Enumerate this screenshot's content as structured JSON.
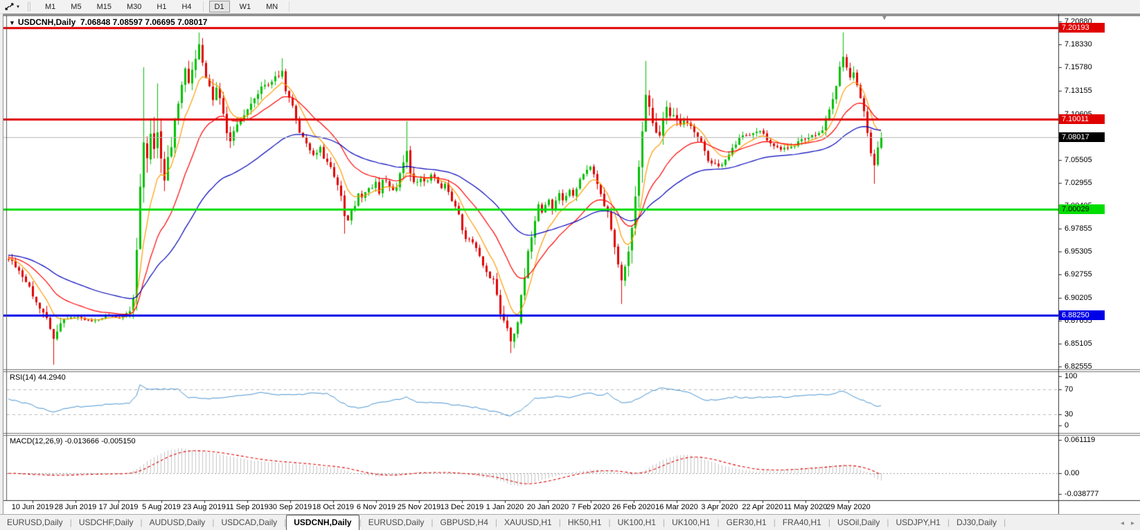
{
  "toolbar": {
    "timeframes": [
      "M1",
      "M5",
      "M15",
      "M30",
      "H1",
      "H4",
      "D1",
      "W1",
      "MN"
    ],
    "active": "D1"
  },
  "chart": {
    "title_symbol": "USDCNH,Daily",
    "title_ohlc": "7.06848 7.08597 7.06695 7.08017",
    "collapse_icon": "▼",
    "shift_marker_icon": "▼"
  },
  "indicators": {
    "rsi": {
      "label": "RSI(14) 44.2940",
      "scale_ticks": [
        [
          "100",
          543
        ],
        [
          "70",
          562
        ],
        [
          "30",
          598
        ],
        [
          "0",
          614
        ]
      ],
      "levels": [
        70,
        30
      ],
      "color": "#4a96d2"
    },
    "macd": {
      "label": "MACD(12,26,9) -0.013666 -0.005150",
      "scale_ticks": [
        [
          "0.061119",
          635
        ],
        [
          "0.00",
          683
        ],
        [
          "-0.038777",
          713
        ]
      ],
      "bar_color": "#c4c4c4",
      "signal_color": "#e00000"
    }
  },
  "chart_data": {
    "type": "candlestick",
    "symbol": "USDCNH",
    "timeframe": "Daily",
    "ohlc_current": {
      "open": 7.06848,
      "high": 7.08597,
      "low": 7.06695,
      "close": 7.08017
    },
    "bull_color": "#00c000",
    "bear_color": "#e00000",
    "y_ticks": [
      "7.20880",
      "7.18330",
      "7.15780",
      "7.13155",
      "7.10605",
      "7.08055",
      "7.05505",
      "7.02955",
      "7.00405",
      "6.97855",
      "6.95305",
      "6.92755",
      "6.90205",
      "6.87655",
      "6.85105",
      "6.82555"
    ],
    "x_labels": [
      "10 Jun 2019",
      "28 Jun 2019",
      "17 Jul 2019",
      "5 Aug 2019",
      "23 Aug 2019",
      "11 Sep 2019",
      "30 Sep 2019",
      "18 Oct 2019",
      "6 Nov 2019",
      "25 Nov 2019",
      "13 Dec 2019",
      "1 Jan 2020",
      "20 Jan 2020",
      "7 Feb 2020",
      "26 Feb 2020",
      "16 Mar 2020",
      "3 Apr 2020",
      "22 Apr 2020",
      "11 May 2020",
      "29 May 2020"
    ],
    "horizontal_lines": [
      {
        "price": 7.20193,
        "color": "#e00000",
        "width": 3
      },
      {
        "price": 7.10011,
        "color": "#e00000",
        "width": 3
      },
      {
        "price": 7.00029,
        "color": "#00dd00",
        "width": 3
      },
      {
        "price": 6.8825,
        "color": "#0000e8",
        "width": 3
      },
      {
        "price": 7.08017,
        "color": "#b8b8b8",
        "width": 1,
        "role": "current"
      }
    ],
    "price_tags": [
      {
        "text": "7.20193",
        "price": 7.20193,
        "bg": "#e00000",
        "fg": "#ffffff"
      },
      {
        "text": "7.10011",
        "price": 7.10011,
        "bg": "#e00000",
        "fg": "#ffffff"
      },
      {
        "text": "7.08017",
        "price": 7.08017,
        "bg": "#000000",
        "fg": "#ffffff"
      },
      {
        "text": "7.00029",
        "price": 7.00029,
        "bg": "#00dd00",
        "fg": "#000000"
      },
      {
        "text": "6.88250",
        "price": 6.8825,
        "bg": "#0000e8",
        "fg": "#ffffff"
      }
    ],
    "moving_averages": [
      {
        "name": "ma-fast",
        "period": 8,
        "color": "#ff9a00"
      },
      {
        "name": "ma-mid",
        "period": 21,
        "color": "#ff0000"
      },
      {
        "name": "ma-slow",
        "period": 52,
        "color": "#0000bb"
      }
    ],
    "bar_count": 253,
    "price_path_anchors": [
      [
        0,
        6.945
      ],
      [
        3,
        6.932
      ],
      [
        6,
        6.912
      ],
      [
        9,
        6.888
      ],
      [
        11,
        6.88
      ],
      [
        13,
        6.858
      ],
      [
        14,
        6.868
      ],
      [
        16,
        6.878
      ],
      [
        20,
        6.88
      ],
      [
        24,
        6.876
      ],
      [
        28,
        6.882
      ],
      [
        32,
        6.879
      ],
      [
        35,
        6.888
      ],
      [
        36,
        6.902
      ],
      [
        37,
        6.955
      ],
      [
        38,
        7.02
      ],
      [
        39,
        7.075
      ],
      [
        40,
        7.05
      ],
      [
        41,
        7.088
      ],
      [
        42,
        7.065
      ],
      [
        43,
        7.092
      ],
      [
        44,
        7.058
      ],
      [
        45,
        7.03
      ],
      [
        46,
        7.055
      ],
      [
        47,
        7.075
      ],
      [
        48,
        7.095
      ],
      [
        49,
        7.118
      ],
      [
        50,
        7.142
      ],
      [
        51,
        7.155
      ],
      [
        52,
        7.138
      ],
      [
        53,
        7.158
      ],
      [
        54,
        7.17
      ],
      [
        55,
        7.18
      ],
      [
        56,
        7.162
      ],
      [
        57,
        7.148
      ],
      [
        59,
        7.122
      ],
      [
        60,
        7.138
      ],
      [
        62,
        7.108
      ],
      [
        63,
        7.088
      ],
      [
        64,
        7.072
      ],
      [
        66,
        7.095
      ],
      [
        68,
        7.105
      ],
      [
        70,
        7.118
      ],
      [
        73,
        7.135
      ],
      [
        76,
        7.142
      ],
      [
        79,
        7.152
      ],
      [
        80,
        7.132
      ],
      [
        82,
        7.115
      ],
      [
        84,
        7.085
      ],
      [
        85,
        7.078
      ],
      [
        87,
        7.068
      ],
      [
        88,
        7.062
      ],
      [
        90,
        7.068
      ],
      [
        91,
        7.058
      ],
      [
        92,
        7.052
      ],
      [
        94,
        7.038
      ],
      [
        96,
        7.018
      ],
      [
        97,
        6.995
      ],
      [
        98,
        6.988
      ],
      [
        100,
        7.005
      ],
      [
        101,
        7.02
      ],
      [
        102,
        7.012
      ],
      [
        104,
        7.022
      ],
      [
        106,
        7.03
      ],
      [
        107,
        7.018
      ],
      [
        108,
        7.032
      ],
      [
        110,
        7.026
      ],
      [
        112,
        7.022
      ],
      [
        113,
        7.038
      ],
      [
        115,
        7.068
      ],
      [
        116,
        7.042
      ],
      [
        117,
        7.028
      ],
      [
        119,
        7.035
      ],
      [
        120,
        7.03
      ],
      [
        122,
        7.038
      ],
      [
        124,
        7.03
      ],
      [
        125,
        7.022
      ],
      [
        126,
        7.028
      ],
      [
        128,
        7.01
      ],
      [
        130,
        6.995
      ],
      [
        131,
        6.978
      ],
      [
        132,
        6.968
      ],
      [
        134,
        6.962
      ],
      [
        136,
        6.95
      ],
      [
        137,
        6.938
      ],
      [
        138,
        6.93
      ],
      [
        140,
        6.92
      ],
      [
        141,
        6.905
      ],
      [
        142,
        6.885
      ],
      [
        144,
        6.868
      ],
      [
        145,
        6.852
      ],
      [
        146,
        6.858
      ],
      [
        147,
        6.872
      ],
      [
        148,
        6.902
      ],
      [
        149,
        6.928
      ],
      [
        150,
        6.952
      ],
      [
        151,
        6.972
      ],
      [
        152,
        6.99
      ],
      [
        153,
        7.005
      ],
      [
        154,
        6.995
      ],
      [
        156,
        7.01
      ],
      [
        157,
        7.0
      ],
      [
        158,
        7.012
      ],
      [
        159,
        7.02
      ],
      [
        160,
        7.012
      ],
      [
        162,
        7.022
      ],
      [
        163,
        7.015
      ],
      [
        164,
        7.025
      ],
      [
        166,
        7.038
      ],
      [
        167,
        7.045
      ],
      [
        168,
        7.048
      ],
      [
        170,
        7.03
      ],
      [
        171,
        7.015
      ],
      [
        173,
        6.998
      ],
      [
        176,
        6.938
      ],
      [
        177,
        6.922
      ],
      [
        178,
        6.938
      ],
      [
        180,
        6.975
      ],
      [
        182,
        7.052
      ],
      [
        184,
        7.13
      ],
      [
        186,
        7.095
      ],
      [
        188,
        7.085
      ],
      [
        190,
        7.11
      ],
      [
        192,
        7.102
      ],
      [
        194,
        7.095
      ],
      [
        196,
        7.098
      ],
      [
        199,
        7.082
      ],
      [
        202,
        7.055
      ],
      [
        205,
        7.048
      ],
      [
        208,
        7.06
      ],
      [
        211,
        7.08
      ],
      [
        214,
        7.082
      ],
      [
        217,
        7.088
      ],
      [
        220,
        7.072
      ],
      [
        223,
        7.068
      ],
      [
        226,
        7.07
      ],
      [
        229,
        7.076
      ],
      [
        232,
        7.082
      ],
      [
        235,
        7.088
      ],
      [
        237,
        7.112
      ],
      [
        239,
        7.138
      ],
      [
        241,
        7.172
      ],
      [
        242,
        7.158
      ],
      [
        243,
        7.146
      ],
      [
        244,
        7.152
      ],
      [
        245,
        7.138
      ],
      [
        246,
        7.126
      ],
      [
        247,
        7.108
      ],
      [
        248,
        7.086
      ],
      [
        249,
        7.062
      ],
      [
        250,
        7.048
      ],
      [
        251,
        7.068
      ],
      [
        252,
        7.08
      ]
    ],
    "volatility_anchors": [
      [
        0,
        0.01
      ],
      [
        8,
        0.008
      ],
      [
        13,
        0.016
      ],
      [
        18,
        0.005
      ],
      [
        34,
        0.004
      ],
      [
        37,
        0.022
      ],
      [
        40,
        0.03
      ],
      [
        45,
        0.022
      ],
      [
        50,
        0.016
      ],
      [
        55,
        0.014
      ],
      [
        62,
        0.014
      ],
      [
        70,
        0.011
      ],
      [
        80,
        0.009
      ],
      [
        90,
        0.008
      ],
      [
        97,
        0.013
      ],
      [
        104,
        0.008
      ],
      [
        113,
        0.01
      ],
      [
        115,
        0.013
      ],
      [
        124,
        0.006
      ],
      [
        134,
        0.007
      ],
      [
        141,
        0.011
      ],
      [
        145,
        0.016
      ],
      [
        150,
        0.015
      ],
      [
        155,
        0.01
      ],
      [
        165,
        0.008
      ],
      [
        172,
        0.01
      ],
      [
        177,
        0.014
      ],
      [
        181,
        0.026
      ],
      [
        184,
        0.03
      ],
      [
        188,
        0.016
      ],
      [
        194,
        0.011
      ],
      [
        200,
        0.009
      ],
      [
        210,
        0.007
      ],
      [
        220,
        0.006
      ],
      [
        228,
        0.007
      ],
      [
        234,
        0.008
      ],
      [
        239,
        0.012
      ],
      [
        241,
        0.013
      ],
      [
        245,
        0.009
      ],
      [
        249,
        0.012
      ],
      [
        252,
        0.009
      ]
    ],
    "spike_highs": {
      "39": 7.158,
      "43": 7.14,
      "55": 7.1966,
      "79": 7.168,
      "115": 7.098,
      "184": 7.165,
      "241": 7.1966
    },
    "spike_lows": {
      "13": 6.8275,
      "97": 6.973,
      "145": 6.8405,
      "177": 6.895,
      "250": 7.0285
    },
    "rsi_anchors": [
      [
        0,
        55
      ],
      [
        6,
        46
      ],
      [
        13,
        33
      ],
      [
        16,
        40
      ],
      [
        26,
        45
      ],
      [
        35,
        48
      ],
      [
        37,
        60
      ],
      [
        38,
        77
      ],
      [
        40,
        71
      ],
      [
        49,
        70
      ],
      [
        52,
        57
      ],
      [
        58,
        55
      ],
      [
        64,
        58
      ],
      [
        70,
        62
      ],
      [
        73,
        65
      ],
      [
        78,
        62
      ],
      [
        84,
        62
      ],
      [
        88,
        64
      ],
      [
        92,
        63
      ],
      [
        96,
        50
      ],
      [
        98,
        44
      ],
      [
        102,
        40
      ],
      [
        107,
        50
      ],
      [
        111,
        52
      ],
      [
        115,
        57
      ],
      [
        118,
        49
      ],
      [
        122,
        50
      ],
      [
        126,
        47
      ],
      [
        131,
        44
      ],
      [
        136,
        40
      ],
      [
        138,
        37
      ],
      [
        142,
        32
      ],
      [
        145,
        27
      ],
      [
        148,
        37
      ],
      [
        152,
        55
      ],
      [
        158,
        58
      ],
      [
        162,
        57
      ],
      [
        166,
        62
      ],
      [
        168,
        64
      ],
      [
        171,
        60
      ],
      [
        173,
        64
      ],
      [
        177,
        48
      ],
      [
        180,
        50
      ],
      [
        183,
        58
      ],
      [
        185,
        65
      ],
      [
        189,
        73
      ],
      [
        192,
        70
      ],
      [
        196,
        66
      ],
      [
        199,
        58
      ],
      [
        202,
        52
      ],
      [
        206,
        55
      ],
      [
        210,
        58
      ],
      [
        214,
        56
      ],
      [
        218,
        57
      ],
      [
        226,
        58
      ],
      [
        230,
        60
      ],
      [
        234,
        61
      ],
      [
        237,
        62
      ],
      [
        241,
        68
      ],
      [
        244,
        58
      ],
      [
        247,
        52
      ],
      [
        249,
        47
      ],
      [
        251,
        42
      ],
      [
        252,
        44.3
      ]
    ],
    "macd_anchors": [
      [
        0,
        0
      ],
      [
        6,
        -0.003
      ],
      [
        13,
        -0.0045
      ],
      [
        20,
        -0.002
      ],
      [
        30,
        -0.001
      ],
      [
        35,
        0.001
      ],
      [
        38,
        0.012
      ],
      [
        40,
        0.022
      ],
      [
        43,
        0.033
      ],
      [
        46,
        0.042
      ],
      [
        49,
        0.0455
      ],
      [
        52,
        0.044
      ],
      [
        56,
        0.04
      ],
      [
        60,
        0.036
      ],
      [
        65,
        0.03
      ],
      [
        70,
        0.024
      ],
      [
        76,
        0.02
      ],
      [
        82,
        0.018
      ],
      [
        88,
        0.014
      ],
      [
        94,
        0.01
      ],
      [
        98,
        0.004
      ],
      [
        102,
        -0.003
      ],
      [
        106,
        -0.006
      ],
      [
        110,
        -0.004
      ],
      [
        114,
        0.0
      ],
      [
        118,
        0.002
      ],
      [
        122,
        0.002
      ],
      [
        126,
        0.001
      ],
      [
        131,
        -0.002
      ],
      [
        136,
        -0.006
      ],
      [
        140,
        -0.01
      ],
      [
        145,
        -0.021
      ],
      [
        148,
        -0.024
      ],
      [
        151,
        -0.019
      ],
      [
        155,
        -0.011
      ],
      [
        158,
        -0.005
      ],
      [
        162,
        0.001
      ],
      [
        166,
        0.005
      ],
      [
        170,
        0.007
      ],
      [
        174,
        0.005
      ],
      [
        177,
        0.0
      ],
      [
        180,
        -0.004
      ],
      [
        183,
        0.003
      ],
      [
        186,
        0.015
      ],
      [
        189,
        0.025
      ],
      [
        193,
        0.033
      ],
      [
        196,
        0.034
      ],
      [
        200,
        0.027
      ],
      [
        204,
        0.019
      ],
      [
        208,
        0.011
      ],
      [
        212,
        0.006
      ],
      [
        216,
        0.004
      ],
      [
        222,
        0.006
      ],
      [
        228,
        0.009
      ],
      [
        234,
        0.012
      ],
      [
        239,
        0.015
      ],
      [
        242,
        0.016
      ],
      [
        245,
        0.01
      ],
      [
        248,
        0.002
      ],
      [
        250,
        -0.008
      ],
      [
        252,
        -0.013666
      ]
    ]
  },
  "tabs": {
    "items": [
      "EURUSD,Daily",
      "USDCHF,Daily",
      "AUDUSD,Daily",
      "USDCAD,Daily",
      "USDCNH,Daily",
      "EURUSD,Daily",
      "GBPUSD,H4",
      "XAUUSD,H1",
      "HK50,H1",
      "UK100,H1",
      "UK100,H1",
      "GER30,H1",
      "FRA40,H1",
      "USOil,Daily",
      "USDJPY,H1",
      "DJ30,Daily"
    ],
    "active_index": 4,
    "scroll_left_icon": "◂",
    "scroll_right_icon": "▸"
  }
}
